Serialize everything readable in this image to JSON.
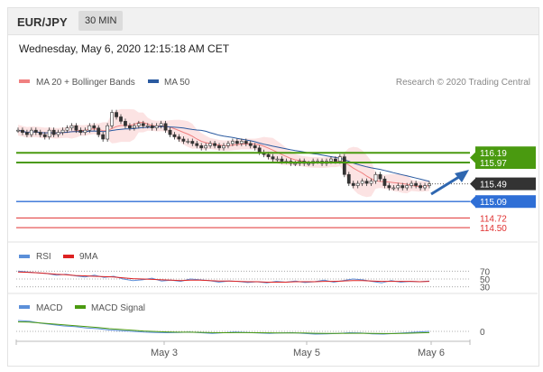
{
  "header": {
    "pair": "EUR/JPY",
    "interval": "30 MIN"
  },
  "datetime": "Wednesday, May 6, 2020 12:15:18 AM CET",
  "credit": "Research © 2020 Trading Central",
  "colors": {
    "ma20": "#f08080",
    "ma50": "#2a5aa0",
    "bollinger_fill": "#fbd9d9",
    "resistance": "#4a9a10",
    "support_blue": "#2f6fd6",
    "support_red": "#e03030",
    "current": "#333333",
    "rsi": "#5b8fd9",
    "nine_ma": "#dd2222",
    "macd": "#5b8fd9",
    "macd_signal": "#4a9a10"
  },
  "legend": {
    "ma20": "MA 20 + Bollinger Bands",
    "ma50": "MA 50"
  },
  "chart_data": [
    {
      "type": "candlestick",
      "name": "price",
      "x_labels": [
        "May 3",
        "May 5",
        "May 6"
      ],
      "ylim": [
        114.3,
        117.6
      ],
      "series_close": [
        116.7,
        116.65,
        116.6,
        116.7,
        116.65,
        116.6,
        116.55,
        116.7,
        116.6,
        116.65,
        116.7,
        116.75,
        116.8,
        116.7,
        116.65,
        116.7,
        116.8,
        116.75,
        116.6,
        116.5,
        116.8,
        117.1,
        117.0,
        116.9,
        116.8,
        116.75,
        116.8,
        116.85,
        116.8,
        116.8,
        116.75,
        116.8,
        116.85,
        116.7,
        116.6,
        116.55,
        116.5,
        116.45,
        116.45,
        116.4,
        116.35,
        116.3,
        116.35,
        116.4,
        116.35,
        116.3,
        116.35,
        116.4,
        116.45,
        116.4,
        116.45,
        116.4,
        116.35,
        116.3,
        116.2,
        116.15,
        116.1,
        116.05,
        116.05,
        116.0,
        116.0,
        115.95,
        115.95,
        116.0,
        115.95,
        115.95,
        116.0,
        116.0,
        115.95,
        116.0,
        116.05,
        116.0,
        116.1,
        115.7,
        115.5,
        115.45,
        115.5,
        115.55,
        115.5,
        115.55,
        115.7,
        115.6,
        115.45,
        115.4,
        115.4,
        115.45,
        115.4,
        115.45,
        115.5,
        115.45,
        115.4,
        115.45,
        115.49
      ],
      "levels": [
        {
          "label": "116.19",
          "value": 116.19,
          "kind": "resistance"
        },
        {
          "label": "115.97",
          "value": 115.97,
          "kind": "resistance"
        },
        {
          "label": "115.49",
          "value": 115.49,
          "kind": "current"
        },
        {
          "label": "115.09",
          "value": 115.09,
          "kind": "support_blue"
        },
        {
          "label": "114.72",
          "value": 114.72,
          "kind": "support_red"
        },
        {
          "label": "114.50",
          "value": 114.5,
          "kind": "support_red"
        }
      ]
    },
    {
      "type": "line",
      "name": "RSI",
      "legend": [
        "RSI",
        "9MA"
      ],
      "ticks": [
        "70",
        "50",
        "30"
      ],
      "tick_values": [
        70,
        50,
        30
      ],
      "ylim": [
        20,
        80
      ],
      "rsi": [
        70,
        68,
        66,
        64,
        60,
        62,
        58,
        55,
        60,
        54,
        57,
        50,
        46,
        48,
        52,
        45,
        47,
        44,
        50,
        48,
        46,
        42,
        45,
        44,
        41,
        43,
        40,
        44,
        42,
        45,
        41,
        43,
        47,
        42,
        46,
        50,
        48,
        44,
        40,
        46,
        42,
        44,
        43,
        45
      ],
      "ma9": [
        68,
        67,
        66,
        64,
        62,
        61,
        59,
        58,
        57,
        56,
        55,
        53,
        51,
        50,
        49,
        48,
        47,
        46,
        47,
        47,
        46,
        45,
        45,
        44,
        43,
        43,
        42,
        42,
        42,
        43,
        43,
        43,
        44,
        44,
        45,
        46,
        46,
        45,
        44,
        44,
        44,
        44,
        43,
        44
      ]
    },
    {
      "type": "line",
      "name": "MACD",
      "legend": [
        "MACD",
        "MACD Signal"
      ],
      "ticks": [
        "0"
      ],
      "tick_values": [
        0
      ],
      "ylim": [
        -1,
        1
      ],
      "macd": [
        0.8,
        0.75,
        0.6,
        0.5,
        0.4,
        0.35,
        0.25,
        0.2,
        0.1,
        0.05,
        0.0,
        -0.05,
        -0.08,
        -0.1,
        -0.08,
        -0.05,
        -0.1,
        -0.15,
        -0.1,
        -0.05,
        -0.08,
        -0.12,
        -0.15,
        -0.12,
        -0.1,
        -0.15,
        -0.2,
        -0.18,
        -0.15,
        -0.1,
        -0.12,
        -0.18,
        -0.2,
        -0.15,
        -0.1,
        -0.05,
        0.0
      ],
      "signal": [
        0.7,
        0.68,
        0.62,
        0.55,
        0.48,
        0.42,
        0.35,
        0.28,
        0.2,
        0.14,
        0.08,
        0.03,
        -0.01,
        -0.04,
        -0.06,
        -0.06,
        -0.07,
        -0.09,
        -0.1,
        -0.09,
        -0.09,
        -0.1,
        -0.11,
        -0.12,
        -0.12,
        -0.12,
        -0.14,
        -0.15,
        -0.15,
        -0.14,
        -0.14,
        -0.15,
        -0.16,
        -0.16,
        -0.14,
        -0.12,
        -0.09
      ]
    }
  ]
}
